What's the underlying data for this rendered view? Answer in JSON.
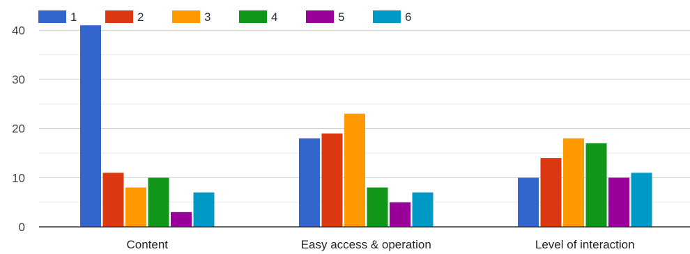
{
  "chart_data": {
    "type": "bar",
    "categories": [
      "Content",
      "Easy access & operation",
      "Level of interaction"
    ],
    "series": [
      {
        "name": "1",
        "color": "#3366cc",
        "values": [
          41,
          18,
          10
        ]
      },
      {
        "name": "2",
        "color": "#dc3912",
        "values": [
          11,
          19,
          14
        ]
      },
      {
        "name": "3",
        "color": "#ff9900",
        "values": [
          8,
          23,
          18
        ]
      },
      {
        "name": "4",
        "color": "#109618",
        "values": [
          10,
          8,
          17
        ]
      },
      {
        "name": "5",
        "color": "#990099",
        "values": [
          3,
          5,
          10
        ]
      },
      {
        "name": "6",
        "color": "#0099c6",
        "values": [
          7,
          7,
          11
        ]
      }
    ],
    "yticks": [
      0,
      10,
      20,
      30,
      40
    ],
    "ylim": [
      0,
      45
    ],
    "grid": true,
    "legend_position": "top-left"
  }
}
